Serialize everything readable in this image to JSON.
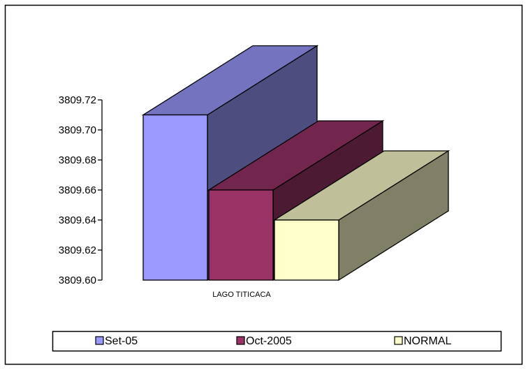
{
  "chart_data": {
    "type": "bar",
    "style": "3d-clustered-column",
    "categories": [
      "LAGO TITICACA"
    ],
    "series": [
      {
        "name": "Set-05",
        "values": [
          3809.71
        ],
        "color": "#9999FF"
      },
      {
        "name": "Oct-2005",
        "values": [
          3809.66
        ],
        "color": "#993366"
      },
      {
        "name": "NORMAL",
        "values": [
          3809.64
        ],
        "color": "#FFFFCC"
      }
    ],
    "yticks": [
      "3809.60",
      "3809.62",
      "3809.64",
      "3809.66",
      "3809.68",
      "3809.70",
      "3809.72"
    ],
    "ylim": [
      3809.6,
      3809.72
    ],
    "grid": false,
    "legend_position": "bottom"
  }
}
